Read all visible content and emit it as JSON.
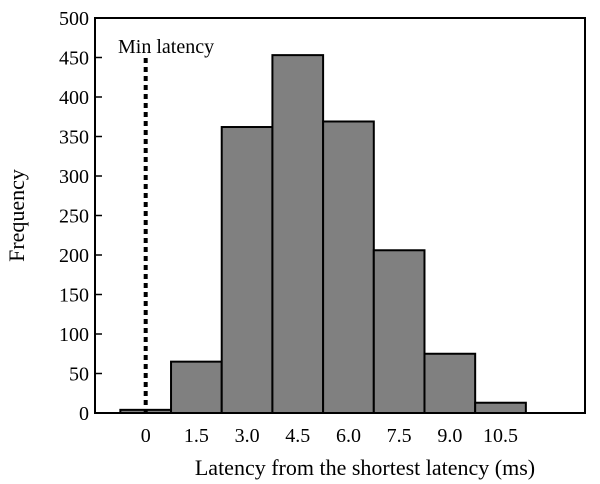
{
  "chart_data": {
    "type": "bar",
    "title": "",
    "xlabel": "Latency from the shortest latency (ms)",
    "ylabel": "Frequency",
    "ylim": [
      0,
      500
    ],
    "yticks": [
      "0",
      "50",
      "100",
      "150",
      "200",
      "250",
      "300",
      "350",
      "400",
      "450",
      "500"
    ],
    "xticks": [
      "0",
      "1.5",
      "3.0",
      "4.5",
      "6.0",
      "7.5",
      "9.0",
      "10.5"
    ],
    "x_range": [
      -1.5,
      13.0
    ],
    "bin_width": 1.5,
    "bins": [
      {
        "start": -0.75,
        "value": 4
      },
      {
        "start": 0.75,
        "value": 65
      },
      {
        "start": 2.25,
        "value": 362
      },
      {
        "start": 3.75,
        "value": 453
      },
      {
        "start": 5.25,
        "value": 369
      },
      {
        "start": 6.75,
        "value": 206
      },
      {
        "start": 8.25,
        "value": 75
      },
      {
        "start": 9.75,
        "value": 13
      }
    ],
    "bar_color": "#808080",
    "annotation": {
      "text": "Min latency",
      "x": 0,
      "line_style": "dotted"
    },
    "grid": false,
    "legend": "none"
  }
}
